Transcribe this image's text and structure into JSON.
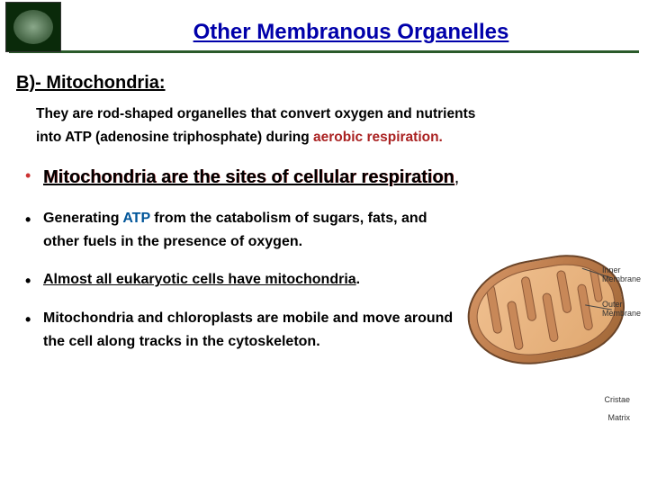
{
  "header": {
    "title": "Other Membranous Organelles"
  },
  "section": {
    "heading": "B)- Mitochondria:",
    "intro_part1": "They are rod-shaped organelles that convert oxygen and nutrients",
    "intro_part2a": "into ",
    "intro_key1": "ATP (",
    "intro_part2b": "adenosine triphosphate) during ",
    "intro_key2": "aerobic respiration.",
    "bullets": {
      "b1_text": "Mitochondria are the sites of cellular respiration",
      "b1_comma": ",",
      "b2_a": "Generating ",
      "b2_atp": "ATP",
      "b2_b": " from the catabolism of sugars, fats, and other fuels in the presence of oxygen.",
      "b3_text": "Almost all eukaryotic cells have mitochondria",
      "b3_dot": ".",
      "b4_text": "Mitochondria and chloroplasts are mobile and move around the cell along tracks in the cytoskeleton."
    }
  },
  "figure": {
    "labels": {
      "inner_membrane_l1": "Inner",
      "inner_membrane_l2": "Membrane",
      "outer_membrane_l1": "Outer",
      "outer_membrane_l2": "Membrane",
      "cristae": "Cristae",
      "matrix": "Matrix"
    },
    "colors": {
      "outer": "#b87848",
      "inner": "#e0a870",
      "border": "#6a4428"
    }
  },
  "style": {
    "title_color": "#0000aa",
    "accent_red": "#aa2222",
    "accent_blue": "#005599",
    "rule_color": "#2a5a2a"
  }
}
